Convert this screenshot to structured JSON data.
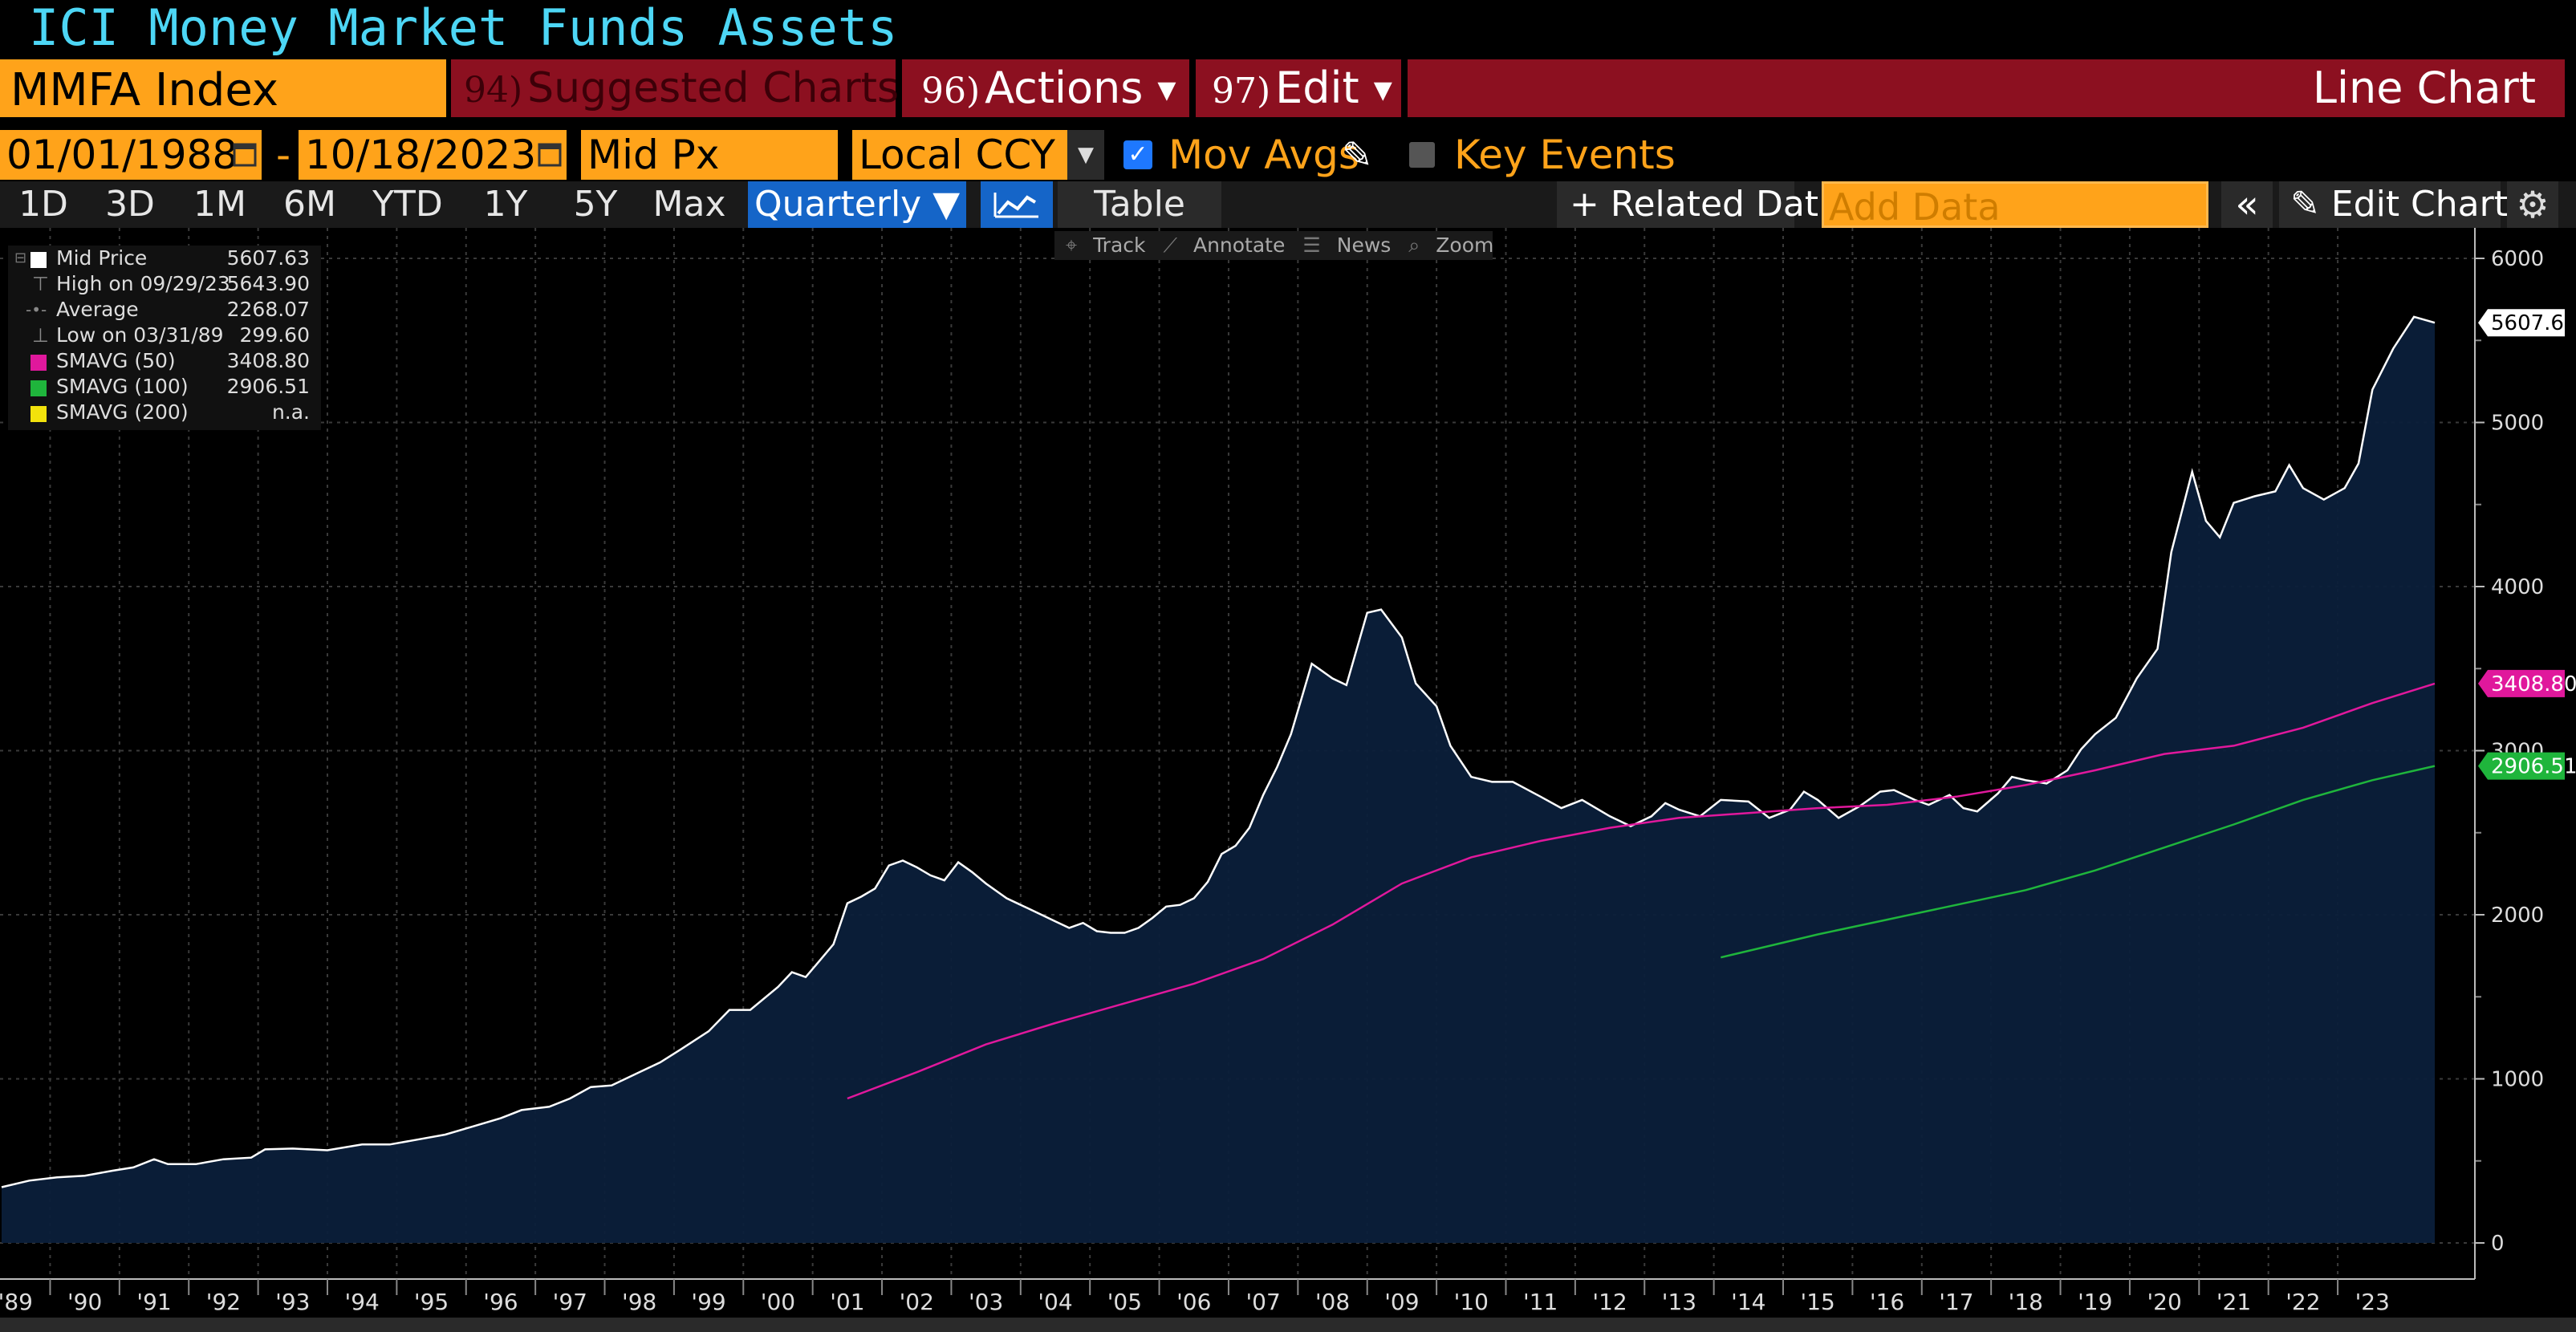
{
  "title": "ICI Money Market Funds Assets",
  "header": {
    "ticker": "MMFA Index",
    "suggested_num": "94)",
    "suggested_label": "Suggested Charts",
    "actions_num": "96)",
    "actions_label": "Actions",
    "edit_num": "97)",
    "edit_label": "Edit",
    "chart_type_label": "Line Chart"
  },
  "controls": {
    "start_date": "01/01/1988",
    "date_separator": "-",
    "end_date": "10/18/2023",
    "price_field": "Mid Px",
    "currency": "Local CCY",
    "mov_avgs_label": "Mov Avgs",
    "mov_avgs_checked": true,
    "key_events_label": "Key Events",
    "key_events_checked": false
  },
  "periods": [
    "1D",
    "3D",
    "1M",
    "6M",
    "YTD",
    "1Y",
    "5Y",
    "Max"
  ],
  "frequency": "Quarterly",
  "table_label": "Table",
  "related_label": "Related Dat",
  "add_data_placeholder": "Add Data",
  "edit_chart_label": "Edit Chart",
  "chart_tools": [
    "Track",
    "Annotate",
    "News",
    "Zoom"
  ],
  "legend": [
    {
      "name": "Mid Price",
      "value": "5607.63",
      "color": "#ffffff"
    },
    {
      "name": "High on 09/29/23",
      "value": "5643.90",
      "glyph": "⊤"
    },
    {
      "name": "Average",
      "value": "2268.07",
      "glyph": "-•-"
    },
    {
      "name": "Low on 03/31/89",
      "value": "299.60",
      "glyph": "⊥"
    },
    {
      "name": "SMAVG (50)",
      "value": "3408.80",
      "color": "#e0189c"
    },
    {
      "name": "SMAVG (100)",
      "value": "2906.51",
      "color": "#1fb53c"
    },
    {
      "name": "SMAVG (200)",
      "value": "n.a.",
      "color": "#f2e20c"
    }
  ],
  "value_tags": [
    {
      "label": "5607.63",
      "value": 5607.63,
      "bg": "#ffffff",
      "fg": "#000000"
    },
    {
      "label": "3408.80",
      "value": 3408.8,
      "bg": "#e0189c",
      "fg": "#ffffff"
    },
    {
      "label": "2906.51",
      "value": 2906.51,
      "bg": "#1fb53c",
      "fg": "#ffffff"
    }
  ],
  "chart_data": {
    "type": "area",
    "title": "ICI Money Market Funds Assets",
    "ylim": [
      0,
      6000
    ],
    "yticks": [
      0,
      1000,
      2000,
      3000,
      4000,
      5000,
      6000
    ],
    "xlim": [
      1988.8,
      2023.9
    ],
    "xticks": [
      {
        "label": "'89",
        "x": 1989
      },
      {
        "label": "'90",
        "x": 1990
      },
      {
        "label": "'91",
        "x": 1991
      },
      {
        "label": "'92",
        "x": 1992
      },
      {
        "label": "'93",
        "x": 1993
      },
      {
        "label": "'94",
        "x": 1994
      },
      {
        "label": "'95",
        "x": 1995
      },
      {
        "label": "'96",
        "x": 1996
      },
      {
        "label": "'97",
        "x": 1997
      },
      {
        "label": "'98",
        "x": 1998
      },
      {
        "label": "'99",
        "x": 1999
      },
      {
        "label": "'00",
        "x": 2000
      },
      {
        "label": "'01",
        "x": 2001
      },
      {
        "label": "'02",
        "x": 2002
      },
      {
        "label": "'03",
        "x": 2003
      },
      {
        "label": "'04",
        "x": 2004
      },
      {
        "label": "'05",
        "x": 2005
      },
      {
        "label": "'06",
        "x": 2006
      },
      {
        "label": "'07",
        "x": 2007
      },
      {
        "label": "'08",
        "x": 2008
      },
      {
        "label": "'09",
        "x": 2009
      },
      {
        "label": "'10",
        "x": 2010
      },
      {
        "label": "'11",
        "x": 2011
      },
      {
        "label": "'12",
        "x": 2012
      },
      {
        "label": "'13",
        "x": 2013
      },
      {
        "label": "'14",
        "x": 2014
      },
      {
        "label": "'15",
        "x": 2015
      },
      {
        "label": "'16",
        "x": 2016
      },
      {
        "label": "'17",
        "x": 2017
      },
      {
        "label": "'18",
        "x": 2018
      },
      {
        "label": "'19",
        "x": 2019
      },
      {
        "label": "'20",
        "x": 2020
      },
      {
        "label": "'21",
        "x": 2021
      },
      {
        "label": "'22",
        "x": 2022
      },
      {
        "label": "'23",
        "x": 2023
      }
    ],
    "grid": true,
    "series": [
      {
        "name": "Mid Price",
        "color": "#ffffff",
        "fill": "#0b1f3a",
        "points": [
          [
            1988.8,
            340
          ],
          [
            1989.2,
            380
          ],
          [
            1989.6,
            400
          ],
          [
            1990.0,
            410
          ],
          [
            1990.4,
            440
          ],
          [
            1990.7,
            460
          ],
          [
            1991.0,
            510
          ],
          [
            1991.2,
            480
          ],
          [
            1991.6,
            480
          ],
          [
            1992.0,
            510
          ],
          [
            1992.4,
            520
          ],
          [
            1992.6,
            570
          ],
          [
            1993.0,
            575
          ],
          [
            1993.5,
            565
          ],
          [
            1994.0,
            600
          ],
          [
            1994.4,
            600
          ],
          [
            1994.8,
            630
          ],
          [
            1995.2,
            660
          ],
          [
            1995.6,
            710
          ],
          [
            1996.0,
            760
          ],
          [
            1996.3,
            810
          ],
          [
            1996.7,
            830
          ],
          [
            1997.0,
            880
          ],
          [
            1997.3,
            950
          ],
          [
            1997.6,
            960
          ],
          [
            1998.0,
            1040
          ],
          [
            1998.3,
            1100
          ],
          [
            1998.6,
            1180
          ],
          [
            1999.0,
            1290
          ],
          [
            1999.3,
            1420
          ],
          [
            1999.6,
            1420
          ],
          [
            2000.0,
            1560
          ],
          [
            2000.2,
            1650
          ],
          [
            2000.4,
            1620
          ],
          [
            2000.6,
            1720
          ],
          [
            2000.8,
            1820
          ],
          [
            2001.0,
            2070
          ],
          [
            2001.2,
            2110
          ],
          [
            2001.4,
            2160
          ],
          [
            2001.6,
            2300
          ],
          [
            2001.8,
            2330
          ],
          [
            2002.0,
            2290
          ],
          [
            2002.2,
            2240
          ],
          [
            2002.4,
            2210
          ],
          [
            2002.6,
            2320
          ],
          [
            2002.8,
            2260
          ],
          [
            2003.0,
            2190
          ],
          [
            2003.3,
            2100
          ],
          [
            2003.6,
            2040
          ],
          [
            2004.0,
            1960
          ],
          [
            2004.2,
            1920
          ],
          [
            2004.4,
            1950
          ],
          [
            2004.6,
            1900
          ],
          [
            2004.8,
            1890
          ],
          [
            2005.0,
            1890
          ],
          [
            2005.2,
            1920
          ],
          [
            2005.4,
            1980
          ],
          [
            2005.6,
            2050
          ],
          [
            2005.8,
            2060
          ],
          [
            2006.0,
            2100
          ],
          [
            2006.2,
            2200
          ],
          [
            2006.4,
            2370
          ],
          [
            2006.6,
            2420
          ],
          [
            2006.8,
            2530
          ],
          [
            2007.0,
            2730
          ],
          [
            2007.2,
            2900
          ],
          [
            2007.4,
            3100
          ],
          [
            2007.7,
            3530
          ],
          [
            2008.0,
            3440
          ],
          [
            2008.2,
            3400
          ],
          [
            2008.5,
            3840
          ],
          [
            2008.7,
            3860
          ],
          [
            2009.0,
            3690
          ],
          [
            2009.2,
            3410
          ],
          [
            2009.5,
            3270
          ],
          [
            2009.7,
            3030
          ],
          [
            2010.0,
            2840
          ],
          [
            2010.3,
            2810
          ],
          [
            2010.6,
            2810
          ],
          [
            2011.0,
            2720
          ],
          [
            2011.3,
            2650
          ],
          [
            2011.6,
            2700
          ],
          [
            2012.0,
            2600
          ],
          [
            2012.3,
            2540
          ],
          [
            2012.6,
            2600
          ],
          [
            2012.8,
            2680
          ],
          [
            2013.0,
            2640
          ],
          [
            2013.3,
            2600
          ],
          [
            2013.6,
            2700
          ],
          [
            2014.0,
            2690
          ],
          [
            2014.3,
            2590
          ],
          [
            2014.6,
            2640
          ],
          [
            2014.8,
            2750
          ],
          [
            2015.0,
            2700
          ],
          [
            2015.3,
            2590
          ],
          [
            2015.6,
            2660
          ],
          [
            2015.9,
            2750
          ],
          [
            2016.1,
            2760
          ],
          [
            2016.4,
            2700
          ],
          [
            2016.6,
            2670
          ],
          [
            2016.9,
            2730
          ],
          [
            2017.1,
            2650
          ],
          [
            2017.3,
            2630
          ],
          [
            2017.6,
            2740
          ],
          [
            2017.8,
            2840
          ],
          [
            2018.0,
            2820
          ],
          [
            2018.3,
            2800
          ],
          [
            2018.6,
            2880
          ],
          [
            2018.8,
            3010
          ],
          [
            2019.0,
            3100
          ],
          [
            2019.3,
            3200
          ],
          [
            2019.6,
            3440
          ],
          [
            2019.9,
            3620
          ],
          [
            2020.1,
            4210
          ],
          [
            2020.4,
            4700
          ],
          [
            2020.6,
            4400
          ],
          [
            2020.8,
            4300
          ],
          [
            2021.0,
            4510
          ],
          [
            2021.3,
            4550
          ],
          [
            2021.6,
            4580
          ],
          [
            2021.8,
            4740
          ],
          [
            2022.0,
            4600
          ],
          [
            2022.3,
            4530
          ],
          [
            2022.6,
            4600
          ],
          [
            2022.8,
            4750
          ],
          [
            2023.0,
            5200
          ],
          [
            2023.3,
            5450
          ],
          [
            2023.6,
            5643.9
          ],
          [
            2023.9,
            5607.63
          ]
        ]
      },
      {
        "name": "SMAVG (50)",
        "color": "#e0189c",
        "points": [
          [
            2001.0,
            880
          ],
          [
            2002.0,
            1040
          ],
          [
            2003.0,
            1210
          ],
          [
            2004.0,
            1340
          ],
          [
            2005.0,
            1460
          ],
          [
            2006.0,
            1580
          ],
          [
            2007.0,
            1730
          ],
          [
            2008.0,
            1940
          ],
          [
            2009.0,
            2190
          ],
          [
            2010.0,
            2350
          ],
          [
            2011.0,
            2450
          ],
          [
            2012.0,
            2530
          ],
          [
            2013.0,
            2590
          ],
          [
            2014.0,
            2620
          ],
          [
            2015.0,
            2650
          ],
          [
            2016.0,
            2670
          ],
          [
            2017.0,
            2720
          ],
          [
            2018.0,
            2790
          ],
          [
            2019.0,
            2880
          ],
          [
            2020.0,
            2980
          ],
          [
            2021.0,
            3030
          ],
          [
            2022.0,
            3140
          ],
          [
            2023.0,
            3290
          ],
          [
            2023.9,
            3408.8
          ]
        ]
      },
      {
        "name": "SMAVG (100)",
        "color": "#1fb53c",
        "points": [
          [
            2013.6,
            1740
          ],
          [
            2014.0,
            1780
          ],
          [
            2015.0,
            1880
          ],
          [
            2016.0,
            1970
          ],
          [
            2017.0,
            2060
          ],
          [
            2018.0,
            2150
          ],
          [
            2019.0,
            2270
          ],
          [
            2020.0,
            2410
          ],
          [
            2021.0,
            2550
          ],
          [
            2022.0,
            2700
          ],
          [
            2023.0,
            2820
          ],
          [
            2023.9,
            2906.51
          ]
        ]
      }
    ],
    "legend_position": "top-left"
  }
}
